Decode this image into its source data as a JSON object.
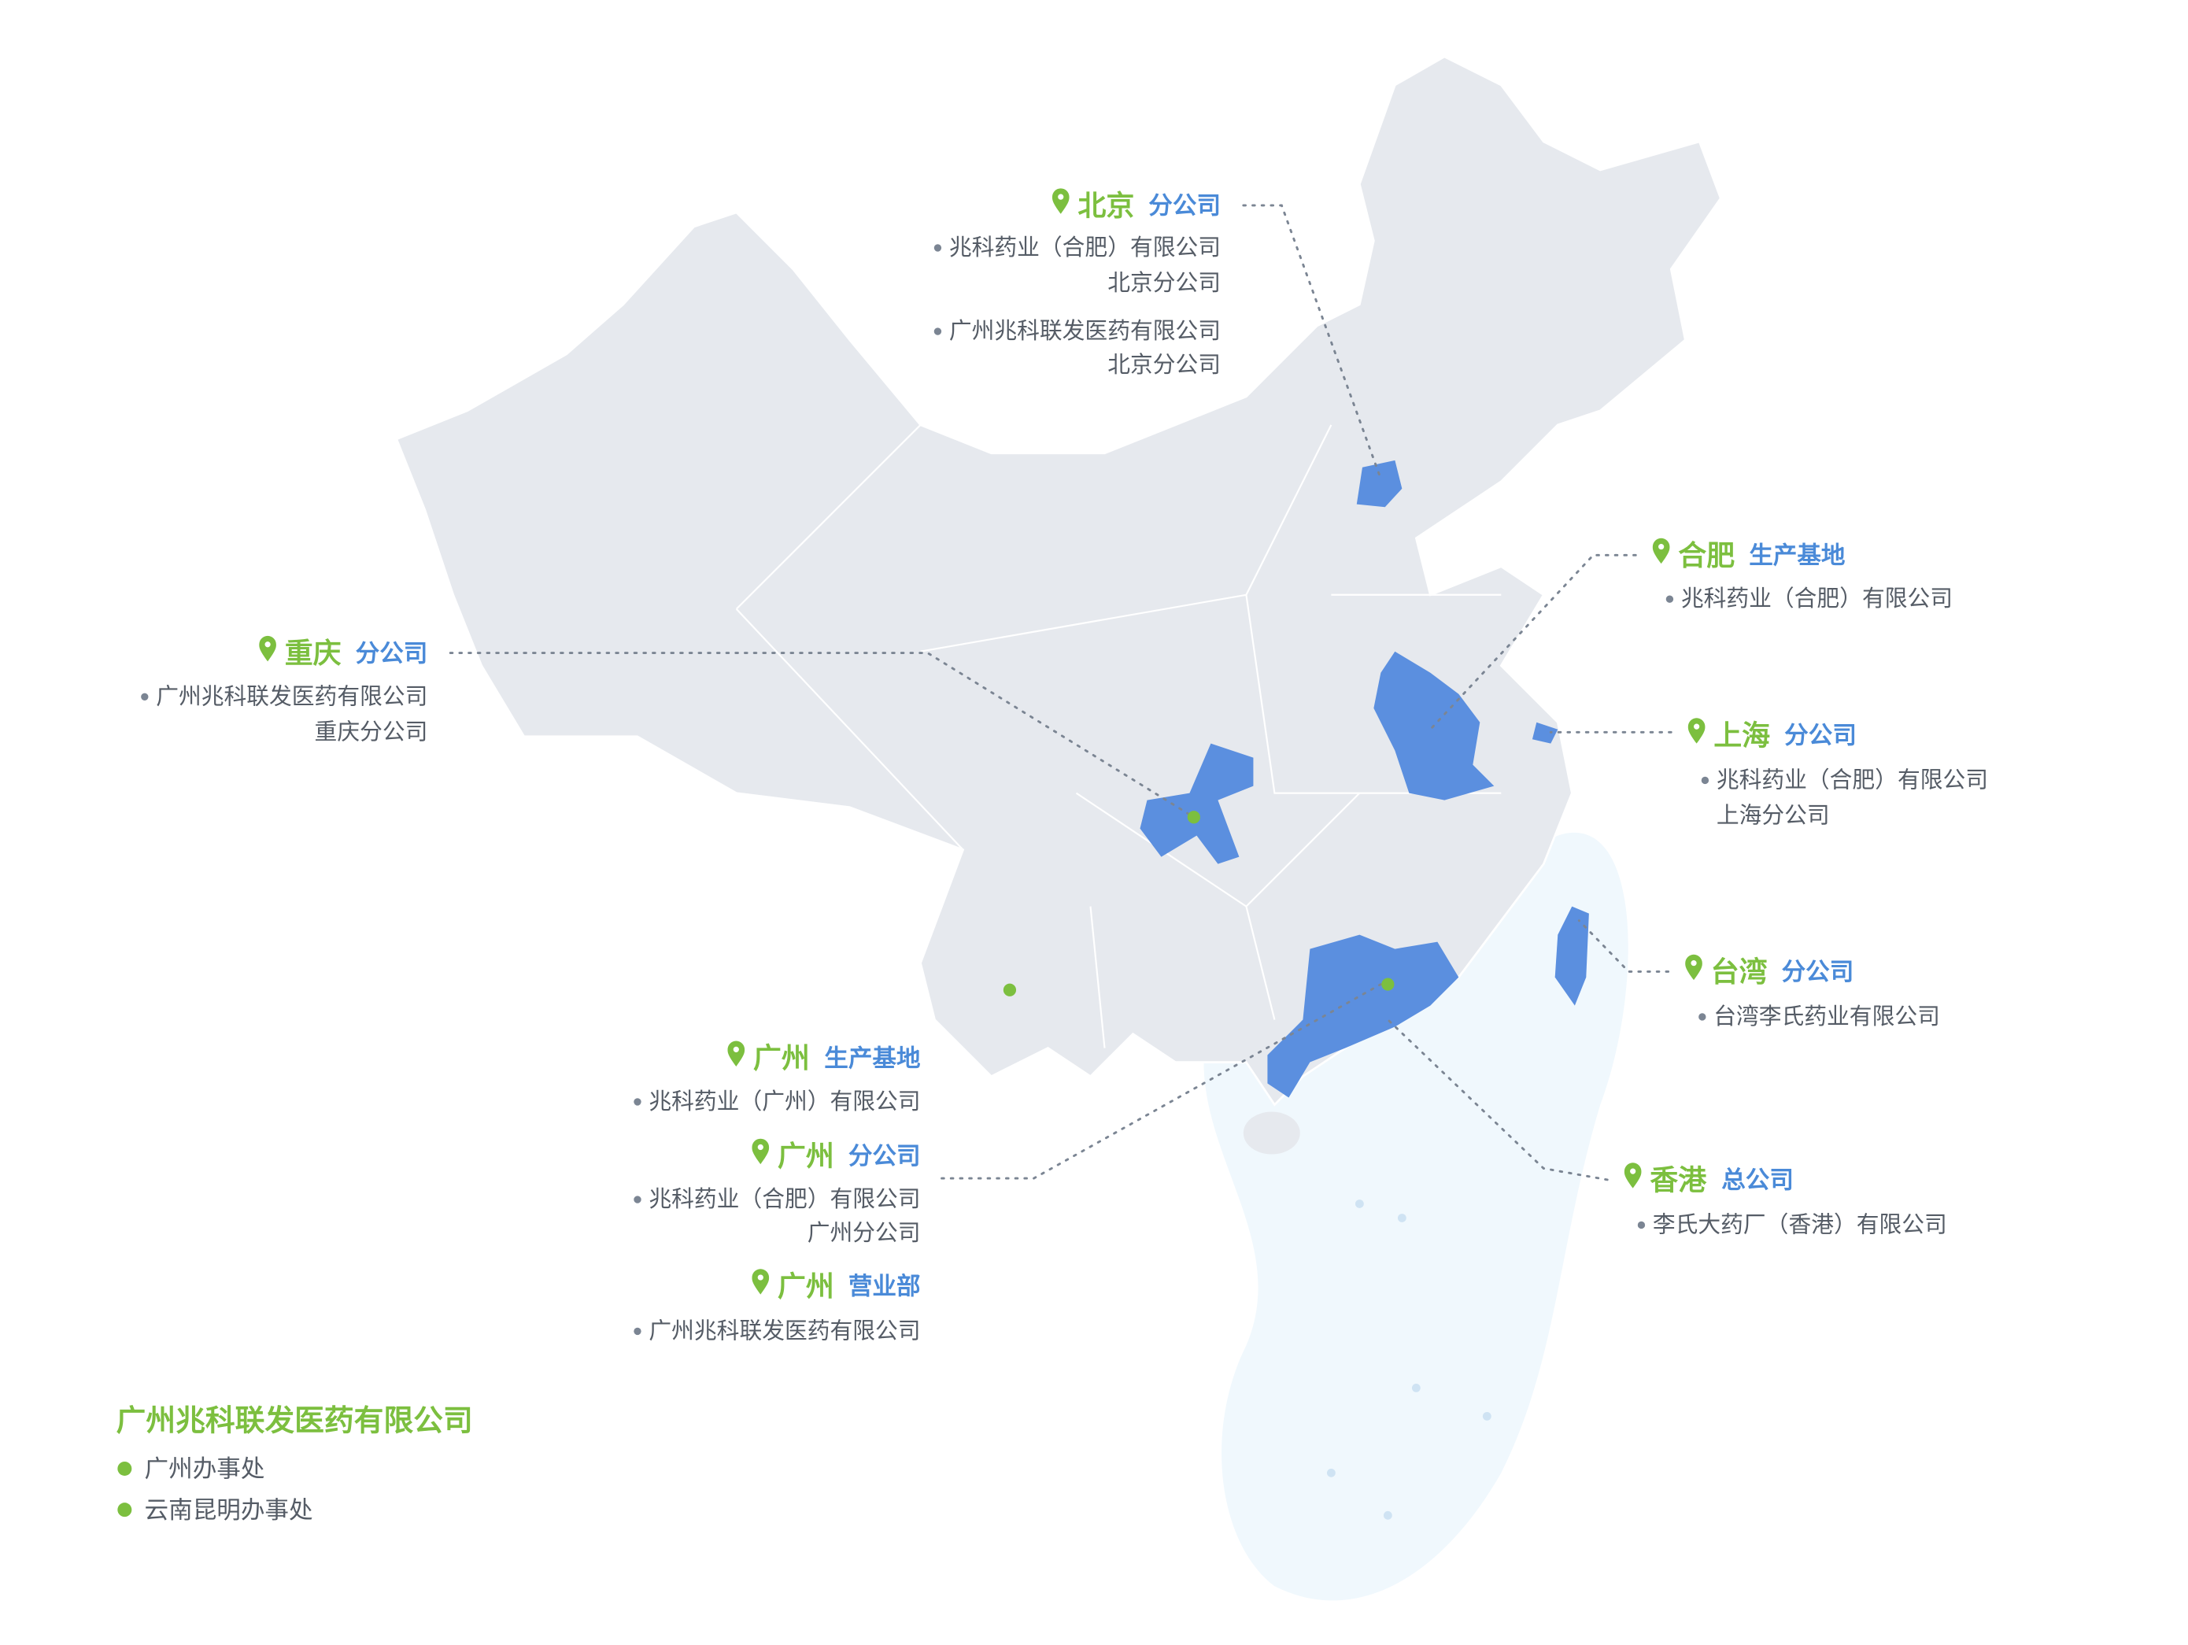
{
  "offices": [
    {
      "city": "北京",
      "kind": "分公司",
      "companies": [
        [
          "兆科药业（合肥）有限公司",
          "北京分公司"
        ],
        [
          "广州兆科联发医药有限公司",
          "北京分公司"
        ]
      ]
    },
    {
      "city": "合肥",
      "kind": "生产基地",
      "companies": [
        [
          "兆科药业（合肥）有限公司"
        ]
      ]
    },
    {
      "city": "重庆",
      "kind": "分公司",
      "companies": [
        [
          "广州兆科联发医药有限公司",
          "重庆分公司"
        ]
      ]
    },
    {
      "city": "上海",
      "kind": "分公司",
      "companies": [
        [
          "兆科药业（合肥）有限公司",
          "上海分公司"
        ]
      ]
    },
    {
      "city": "台湾",
      "kind": "分公司",
      "companies": [
        [
          "台湾李氏药业有限公司"
        ]
      ]
    },
    {
      "city": "广州",
      "kind": "生产基地",
      "companies": [
        [
          "兆科药业（广州）有限公司"
        ]
      ]
    },
    {
      "city": "广州",
      "kind": "分公司",
      "companies": [
        [
          "兆科药业（合肥）有限公司",
          "广州分公司"
        ]
      ]
    },
    {
      "city": "广州",
      "kind": "营业部",
      "companies": [
        [
          "广州兆科联发医药有限公司"
        ]
      ]
    },
    {
      "city": "香港",
      "kind": "总公司",
      "companies": [
        [
          "李氏大药厂（香港）有限公司"
        ]
      ]
    }
  ],
  "legend": {
    "title": "广州兆科联发医药有限公司",
    "items": [
      "广州办事处",
      "云南昆明办事处"
    ]
  }
}
